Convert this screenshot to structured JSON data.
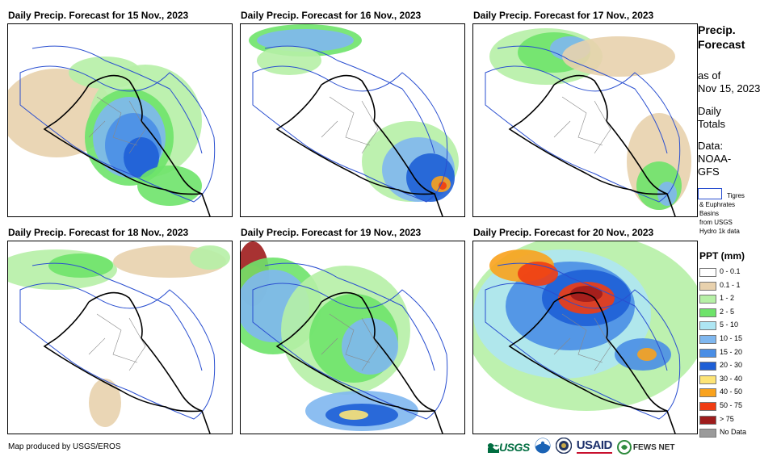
{
  "panels": [
    {
      "title": "Daily Precip. Forecast for 15 Nov., 2023"
    },
    {
      "title": "Daily Precip. Forecast for 16 Nov., 2023"
    },
    {
      "title": "Daily Precip. Forecast for 17 Nov., 2023"
    },
    {
      "title": "Daily Precip. Forecast for 18 Nov., 2023"
    },
    {
      "title": "Daily Precip. Forecast for 19 Nov., 2023"
    },
    {
      "title": "Daily Precip. Forecast for 20 Nov., 2023"
    }
  ],
  "sidebar": {
    "heading_line1": "Precip.",
    "heading_line2": "Forecast",
    "asof_line1": "as of",
    "asof_line2": "Nov 15, 2023",
    "totals_line1": "Daily",
    "totals_line2": "Totals",
    "source_line1": "Data:",
    "source_line2": "NOAA-",
    "source_line3": "GFS",
    "basin_line1": "Tigres",
    "basin_line2": "& Euphrates",
    "basin_line3": "Basins",
    "basin_line4": "from USGS",
    "basin_line5": "Hydro 1k data"
  },
  "legend": {
    "title": "PPT (mm)",
    "items": [
      {
        "label": "0 - 0.1",
        "color": "#ffffff"
      },
      {
        "label": "0.1 - 1",
        "color": "#e8d1ad"
      },
      {
        "label": "1 - 2",
        "color": "#b6f0a6"
      },
      {
        "label": "2 - 5",
        "color": "#6ee36a"
      },
      {
        "label": "5 - 10",
        "color": "#aee6f3"
      },
      {
        "label": "10 - 15",
        "color": "#7fb7ef"
      },
      {
        "label": "15 - 20",
        "color": "#4a8ee5"
      },
      {
        "label": "20 - 30",
        "color": "#1e5fd6"
      },
      {
        "label": "30 - 40",
        "color": "#fde476"
      },
      {
        "label": "40 - 50",
        "color": "#f9a21d"
      },
      {
        "label": "50 - 75",
        "color": "#f03c13"
      },
      {
        "label": "> 75",
        "color": "#9e1c1c"
      },
      {
        "label": "No Data",
        "color": "#9a9a9a"
      }
    ]
  },
  "footer": {
    "credit": "Map produced by USGS/EROS",
    "logos": [
      {
        "name": "usgs-logo",
        "text": "USGS"
      },
      {
        "name": "noaa-logo",
        "text": ""
      },
      {
        "name": "dos-seal-logo",
        "text": ""
      },
      {
        "name": "usaid-logo",
        "text": "USAID"
      },
      {
        "name": "fewsnet-logo",
        "text": "FEWS NET"
      }
    ]
  }
}
